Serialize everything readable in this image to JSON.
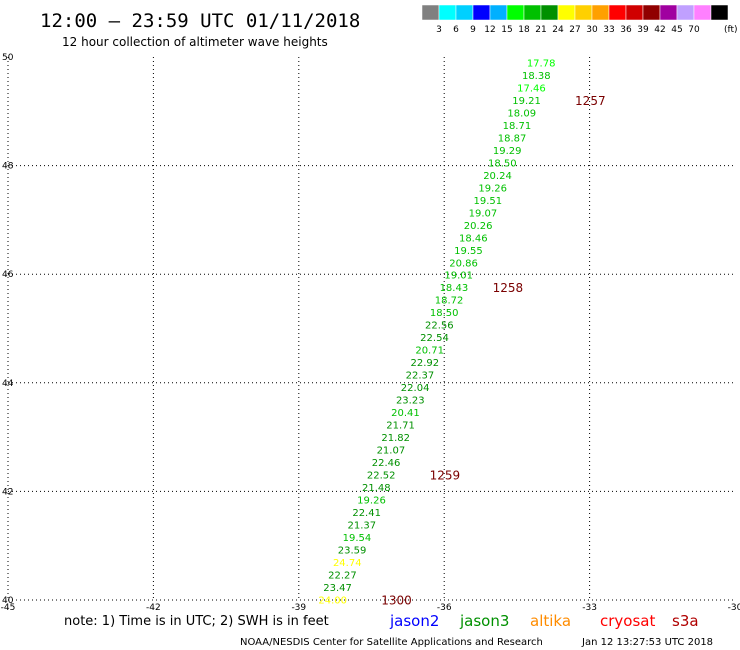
{
  "title": "12:00 – 23:59 UTC 01/11/2018",
  "subtitle": "12 hour collection of altimeter wave heights",
  "colorbar": {
    "swatches": [
      "#808080",
      "#00ffff",
      "#00d0ff",
      "#0000ff",
      "#00b0ff",
      "#00ff00",
      "#00c000",
      "#009000",
      "#ffff00",
      "#ffd000",
      "#ffa000",
      "#ff0000",
      "#d00000",
      "#900000",
      "#a000a0",
      "#c0a0ff",
      "#ff80ff",
      "#000000"
    ],
    "labels": [
      "3",
      "6",
      "9",
      "12",
      "15",
      "18",
      "21",
      "24",
      "27",
      "30",
      "33",
      "36",
      "39",
      "42",
      "45",
      "70"
    ],
    "unit": "(ft)"
  },
  "chart_data": {
    "type": "scatter",
    "xlim": [
      -45,
      -30
    ],
    "ylim": [
      40,
      50
    ],
    "xticks": [
      -45,
      -42,
      -39,
      -36,
      -33,
      -30
    ],
    "yticks": [
      40,
      42,
      44,
      46,
      48,
      50
    ],
    "grid": true,
    "points": [
      {
        "lon": -34.0,
        "lat": 49.9,
        "v": "17.78"
      },
      {
        "lon": -34.1,
        "lat": 49.67,
        "v": "18.38"
      },
      {
        "lon": -34.2,
        "lat": 49.44,
        "v": "17.46"
      },
      {
        "lon": -34.3,
        "lat": 49.21,
        "v": "19.21"
      },
      {
        "lon": -34.4,
        "lat": 48.98,
        "v": "18.09"
      },
      {
        "lon": -34.5,
        "lat": 48.75,
        "v": "18.71"
      },
      {
        "lon": -34.6,
        "lat": 48.52,
        "v": "18.87"
      },
      {
        "lon": -34.7,
        "lat": 48.29,
        "v": "19.29"
      },
      {
        "lon": -34.8,
        "lat": 48.06,
        "v": "18.50"
      },
      {
        "lon": -34.9,
        "lat": 47.83,
        "v": "20.24"
      },
      {
        "lon": -35.0,
        "lat": 47.6,
        "v": "19.26"
      },
      {
        "lon": -35.1,
        "lat": 47.37,
        "v": "19.51"
      },
      {
        "lon": -35.2,
        "lat": 47.14,
        "v": "19.07"
      },
      {
        "lon": -35.3,
        "lat": 46.91,
        "v": "20.26"
      },
      {
        "lon": -35.4,
        "lat": 46.68,
        "v": "18.46"
      },
      {
        "lon": -35.5,
        "lat": 46.45,
        "v": "19.55"
      },
      {
        "lon": -35.6,
        "lat": 46.22,
        "v": "20.86"
      },
      {
        "lon": -35.7,
        "lat": 45.99,
        "v": "19.01"
      },
      {
        "lon": -35.8,
        "lat": 45.76,
        "v": "18.43"
      },
      {
        "lon": -35.9,
        "lat": 45.53,
        "v": "18.72"
      },
      {
        "lon": -36.0,
        "lat": 45.3,
        "v": "18.50"
      },
      {
        "lon": -36.1,
        "lat": 45.07,
        "v": "22.56"
      },
      {
        "lon": -36.2,
        "lat": 44.84,
        "v": "22.54"
      },
      {
        "lon": -36.3,
        "lat": 44.61,
        "v": "20.71"
      },
      {
        "lon": -36.4,
        "lat": 44.38,
        "v": "22.92"
      },
      {
        "lon": -36.5,
        "lat": 44.15,
        "v": "22.37"
      },
      {
        "lon": -36.6,
        "lat": 43.92,
        "v": "22.04"
      },
      {
        "lon": -36.7,
        "lat": 43.69,
        "v": "23.23"
      },
      {
        "lon": -36.8,
        "lat": 43.46,
        "v": "20.41"
      },
      {
        "lon": -36.9,
        "lat": 43.23,
        "v": "21.71"
      },
      {
        "lon": -37.0,
        "lat": 43.0,
        "v": "21.82"
      },
      {
        "lon": -37.1,
        "lat": 42.77,
        "v": "21.07"
      },
      {
        "lon": -37.2,
        "lat": 42.54,
        "v": "22.46"
      },
      {
        "lon": -37.3,
        "lat": 42.31,
        "v": "22.52"
      },
      {
        "lon": -37.4,
        "lat": 42.08,
        "v": "21.48"
      },
      {
        "lon": -37.5,
        "lat": 41.85,
        "v": "19.26"
      },
      {
        "lon": -37.6,
        "lat": 41.62,
        "v": "22.41"
      },
      {
        "lon": -37.7,
        "lat": 41.39,
        "v": "21.37"
      },
      {
        "lon": -37.8,
        "lat": 41.16,
        "v": "19.54"
      },
      {
        "lon": -37.9,
        "lat": 40.93,
        "v": "23.59"
      },
      {
        "lon": -38.0,
        "lat": 40.7,
        "v": "24.74"
      },
      {
        "lon": -38.1,
        "lat": 40.47,
        "v": "22.27"
      },
      {
        "lon": -38.2,
        "lat": 40.24,
        "v": "23.47"
      },
      {
        "lon": -38.3,
        "lat": 40.01,
        "v": "24.00"
      }
    ],
    "time_marks": [
      {
        "lon": -33.3,
        "lat": 49.21,
        "label": "1257"
      },
      {
        "lon": -35.0,
        "lat": 45.76,
        "label": "1258"
      },
      {
        "lon": -36.3,
        "lat": 42.31,
        "label": "1259"
      },
      {
        "lon": -37.3,
        "lat": 40.01,
        "label": "1300"
      }
    ]
  },
  "footer": {
    "note": "note:  1) Time is in UTC;  2) SWH is in feet",
    "satellites": [
      {
        "name": "jason2",
        "color": "#0000ff"
      },
      {
        "name": "jason3",
        "color": "#009000"
      },
      {
        "name": "altika",
        "color": "#ff8c00"
      },
      {
        "name": "cryosat",
        "color": "#ff0000"
      },
      {
        "name": "s3a",
        "color": "#b00000"
      }
    ],
    "credit": "NOAA/NESDIS Center for Satellite Applications and Research",
    "timestamp": "Jan 12 13:27:53 UTC 2018"
  }
}
